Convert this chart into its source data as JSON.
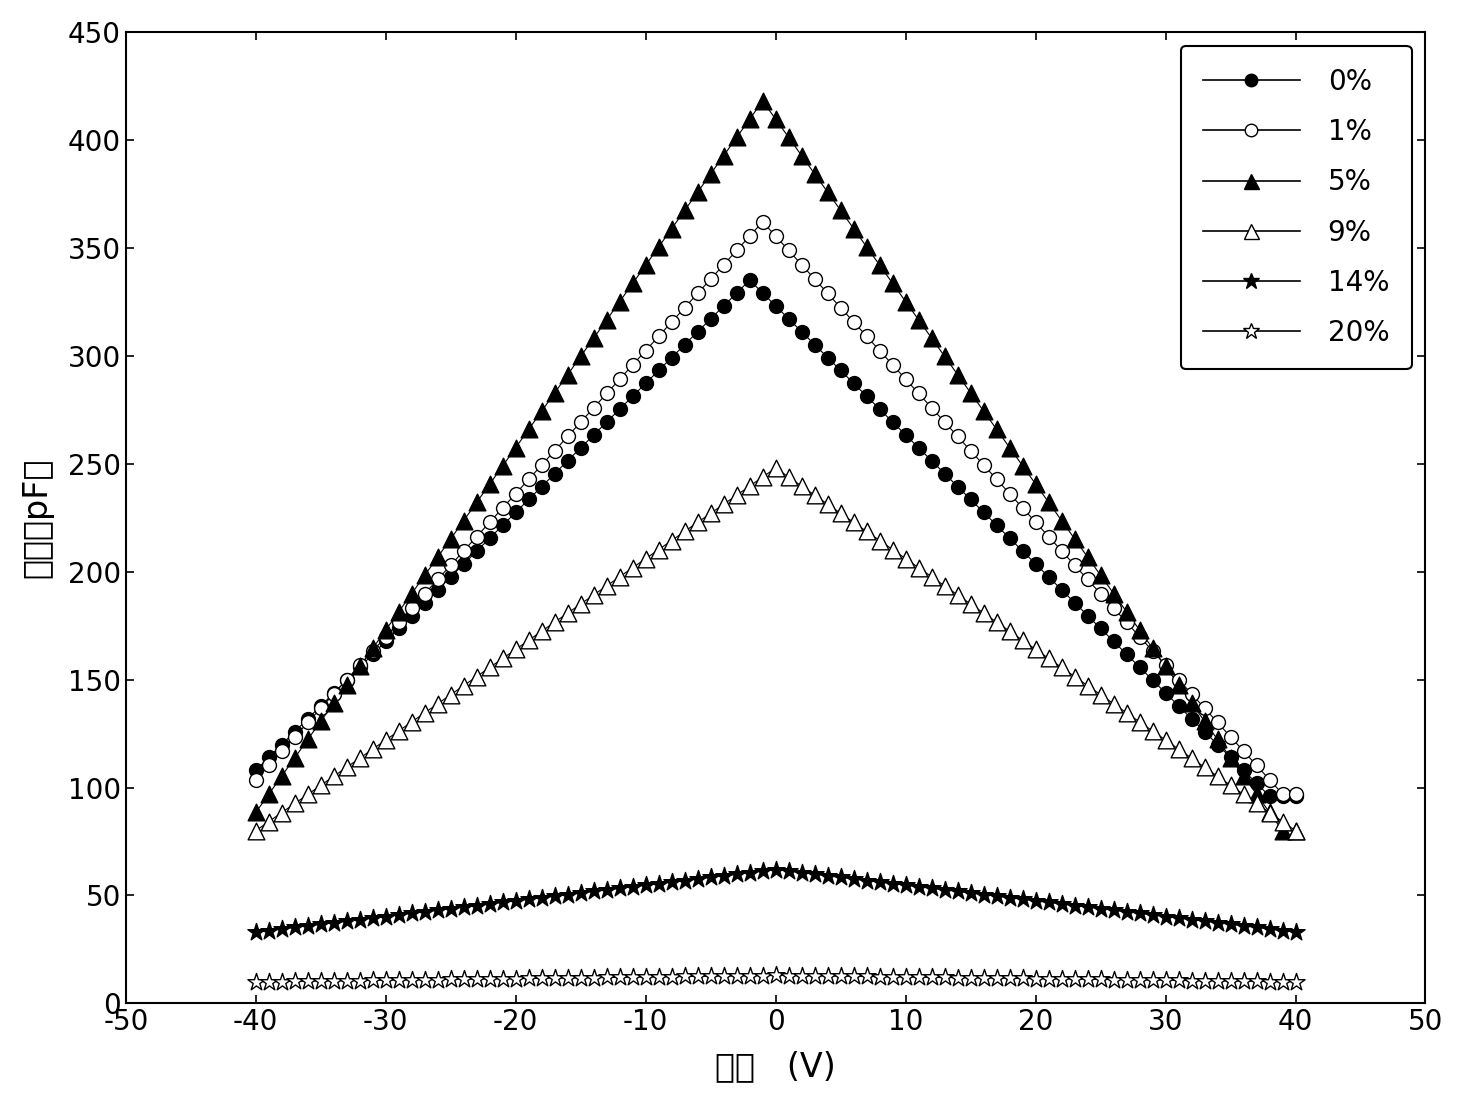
{
  "xlim": [
    -50,
    50
  ],
  "ylim": [
    0,
    450
  ],
  "xticks": [
    -50,
    -40,
    -30,
    -20,
    -10,
    0,
    10,
    20,
    30,
    40,
    50
  ],
  "yticks": [
    0,
    50,
    100,
    150,
    200,
    250,
    300,
    350,
    400,
    450
  ],
  "xlabel_label": "电压   (V)",
  "ylabel_label": "电容（pF）",
  "background_color": "#ffffff",
  "legend_fontsize": 20,
  "axis_fontsize": 24,
  "tick_fontsize": 20,
  "series": [
    {
      "label": "0%",
      "marker": "o",
      "filled": true,
      "peak": 335,
      "base": 96,
      "v_peak": -2,
      "markersize": 10
    },
    {
      "label": "1%",
      "marker": "o",
      "filled": false,
      "peak": 362,
      "base": 97,
      "v_peak": -1,
      "markersize": 10
    },
    {
      "label": "5%",
      "marker": "^",
      "filled": true,
      "peak": 418,
      "base": 80,
      "v_peak": -1,
      "markersize": 12
    },
    {
      "label": "9%",
      "marker": "^",
      "filled": false,
      "peak": 248,
      "base": 80,
      "v_peak": 0,
      "markersize": 12
    },
    {
      "label": "14%",
      "marker": "*",
      "filled": true,
      "peak": 62,
      "base": 33,
      "v_peak": 0,
      "markersize": 13
    },
    {
      "label": "20%",
      "marker": "*",
      "filled": false,
      "peak": 13,
      "base": 10,
      "v_peak": 0,
      "markersize": 13
    }
  ]
}
